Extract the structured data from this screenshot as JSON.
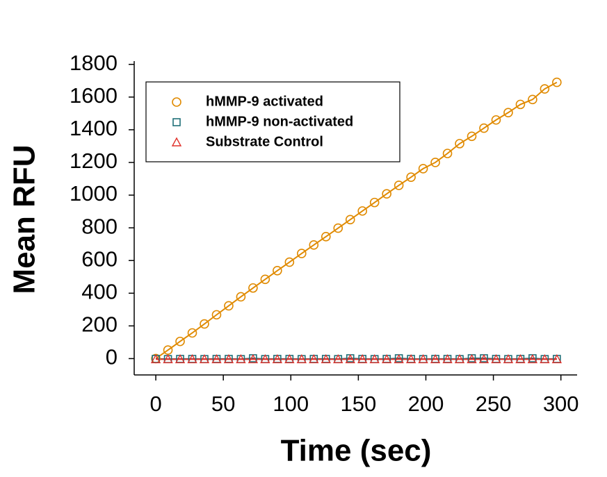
{
  "chart_data": {
    "type": "scatter",
    "x_label": "Time (sec)",
    "y_label": "Mean RFU",
    "x": [
      0,
      9,
      18,
      27,
      36,
      45,
      54,
      63,
      72,
      81,
      90,
      99,
      108,
      117,
      126,
      135,
      144,
      153,
      162,
      171,
      180,
      189,
      198,
      207,
      216,
      225,
      234,
      243,
      252,
      261,
      270,
      279,
      288,
      297
    ],
    "series": [
      {
        "name": "hMMP-9 activated",
        "color": "#e08a00",
        "marker": "circle",
        "values": [
          0,
          52,
          105,
          157,
          212,
          268,
          323,
          378,
          432,
          485,
          538,
          590,
          643,
          695,
          746,
          798,
          850,
          903,
          955,
          1008,
          1060,
          1110,
          1162,
          1200,
          1255,
          1315,
          1360,
          1410,
          1460,
          1505,
          1555,
          1585,
          1650,
          1690
        ]
      },
      {
        "name": "hMMP-9 non-activated",
        "color": "#1f6f78",
        "marker": "square",
        "values": [
          -2,
          -3,
          -2,
          -2,
          -3,
          -2,
          -2,
          -3,
          2,
          -3,
          -2,
          -2,
          -3,
          -2,
          -2,
          -3,
          2,
          -2,
          -3,
          -2,
          2,
          -2,
          -3,
          -2,
          -2,
          -3,
          2,
          2,
          -2,
          -3,
          -2,
          2,
          -3,
          -2
        ]
      },
      {
        "name": "Substrate Control",
        "color": "#e0302a",
        "marker": "triangle",
        "values": [
          -4,
          -4,
          -4,
          -4,
          -4,
          -4,
          -4,
          -4,
          -4,
          -4,
          -4,
          -4,
          -4,
          -4,
          -4,
          -4,
          -4,
          -4,
          -4,
          -4,
          -4,
          -4,
          -4,
          -4,
          -4,
          -4,
          -4,
          -4,
          -4,
          -4,
          -4,
          -4,
          -4,
          -4
        ]
      }
    ],
    "xlim": [
      -16,
      312
    ],
    "ylim": [
      -100,
      1820
    ],
    "xticks": [
      0,
      50,
      100,
      150,
      200,
      250,
      300
    ],
    "yticks": [
      0,
      200,
      400,
      600,
      800,
      1000,
      1200,
      1400,
      1600,
      1800
    ],
    "legend": "upper-left"
  }
}
